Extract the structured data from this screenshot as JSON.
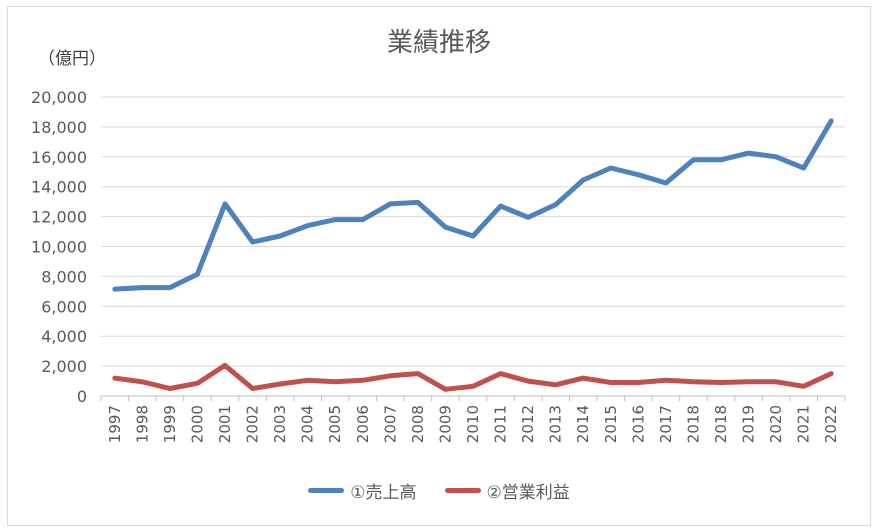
{
  "chart_data": {
    "type": "line",
    "title": "業績推移",
    "ylabel": "（億円）",
    "xlabel": "",
    "ylim": [
      0,
      20000
    ],
    "yticks": [
      "0",
      "2,000",
      "4,000",
      "6,000",
      "8,000",
      "10,000",
      "12,000",
      "14,000",
      "16,000",
      "18,000",
      "20,000"
    ],
    "grid": true,
    "legend_position": "bottom",
    "categories": [
      "1997",
      "1998",
      "1999",
      "2000",
      "2001",
      "2002",
      "2003",
      "2004",
      "2005",
      "2006",
      "2007",
      "2008",
      "2009",
      "2010",
      "2011",
      "2012",
      "2013",
      "2014",
      "2015",
      "2016",
      "2017",
      "2018",
      "2018",
      "2019",
      "2020",
      "2021",
      "2022"
    ],
    "series": [
      {
        "name": "①売上高",
        "color": "#4f81bd",
        "values": [
          7150,
          7250,
          7250,
          8150,
          12850,
          10300,
          10700,
          11400,
          11800,
          11800,
          12850,
          12950,
          11300,
          10700,
          12700,
          11950,
          12800,
          14450,
          15250,
          14800,
          14250,
          15800,
          15800,
          16250,
          16000,
          15250,
          18400
        ]
      },
      {
        "name": "②営業利益",
        "color": "#c0504d",
        "values": [
          1200,
          950,
          500,
          850,
          2050,
          500,
          800,
          1050,
          950,
          1050,
          1350,
          1500,
          450,
          650,
          1500,
          1000,
          750,
          1200,
          900,
          900,
          1050,
          950,
          900,
          950,
          950,
          650,
          1500
        ]
      }
    ]
  }
}
